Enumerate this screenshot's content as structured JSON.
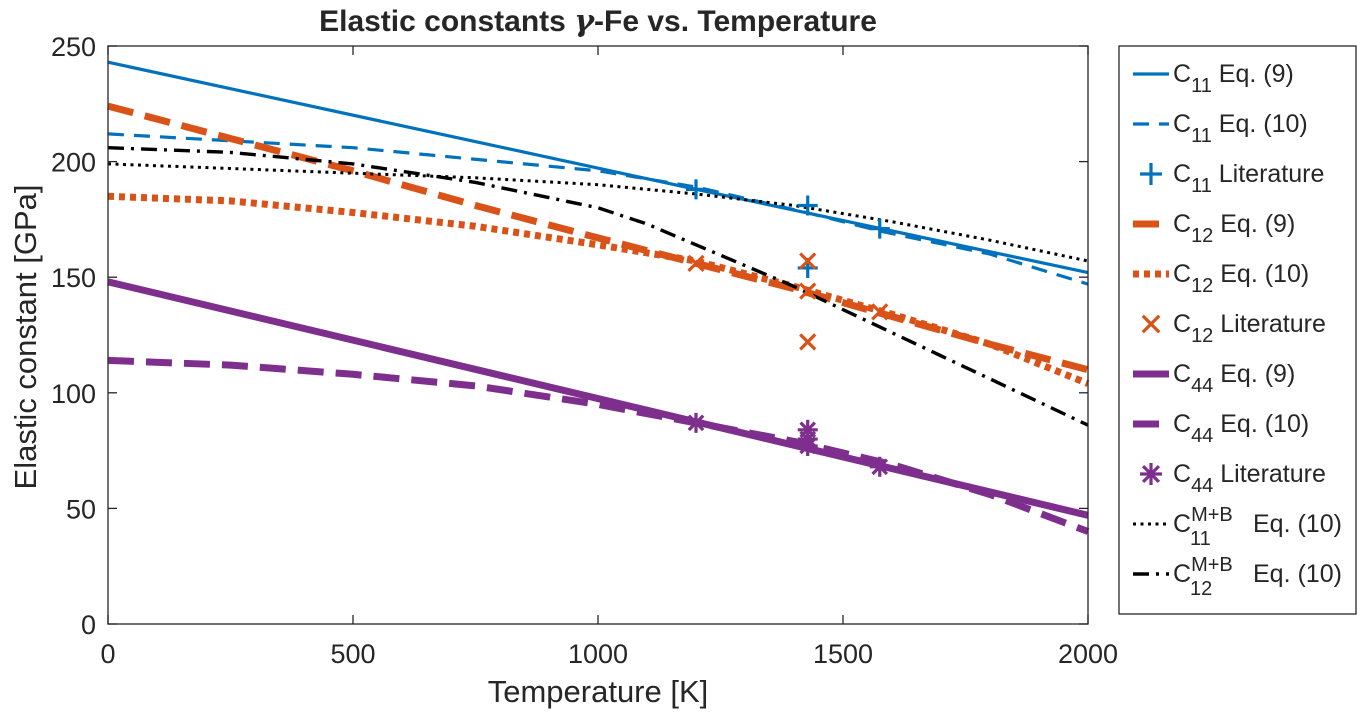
{
  "chart_data": {
    "type": "line",
    "title": {
      "pre": "Elastic constants ",
      "greek": "γ",
      "post": "-Fe vs. Temperature"
    },
    "xlabel": "Temperature [K]",
    "ylabel": "Elastic constant [GPa]",
    "xlim": [
      0,
      2000
    ],
    "ylim": [
      0,
      250
    ],
    "xticks": [
      0,
      500,
      1000,
      1500,
      2000
    ],
    "yticks": [
      0,
      50,
      100,
      150,
      200,
      250
    ],
    "grid": false,
    "legend_position": "outside-right",
    "series": [
      {
        "sym": "C",
        "sub": "11",
        "sup": "",
        "suffix": "Eq. (9)",
        "color": "#0072BD",
        "style": "solid",
        "kind": "line",
        "x": [
          0,
          1200,
          2000
        ],
        "y": [
          243,
          188,
          152
        ]
      },
      {
        "sym": "C",
        "sub": "11",
        "sup": "",
        "suffix": "Eq. (10)",
        "color": "#0072BD",
        "style": "dashed",
        "kind": "line",
        "x": [
          0,
          500,
          800,
          1000,
          1200,
          1425,
          1575,
          1800,
          2000
        ],
        "y": [
          212,
          206,
          200,
          196,
          189,
          178,
          170,
          160,
          147
        ]
      },
      {
        "sym": "C",
        "sub": "11",
        "sup": "",
        "suffix": "Literature",
        "color": "#0072BD",
        "style": "none",
        "kind": "marker",
        "marker": "plus",
        "x": [
          1200,
          1428,
          1428,
          1575
        ],
        "y": [
          188,
          181,
          154,
          171
        ]
      },
      {
        "sym": "C",
        "sub": "12",
        "sup": "",
        "suffix": "Eq. (9)",
        "color": "#D95319",
        "style": "thickdash",
        "kind": "line",
        "x": [
          0,
          250,
          500,
          750,
          1000,
          1200,
          1400,
          1600,
          1800,
          2000
        ],
        "y": [
          224,
          210,
          196,
          181,
          167,
          156,
          145,
          133,
          121,
          110
        ]
      },
      {
        "sym": "C",
        "sub": "12",
        "sup": "",
        "suffix": "Eq. (10)",
        "color": "#D95319",
        "style": "dotted",
        "kind": "line",
        "x": [
          0,
          250,
          500,
          750,
          1000,
          1200,
          1400,
          1600,
          1800,
          2000
        ],
        "y": [
          185,
          183,
          178,
          172,
          164,
          157,
          146,
          134,
          121,
          104
        ]
      },
      {
        "sym": "C",
        "sub": "12",
        "sup": "",
        "suffix": "Literature",
        "color": "#D95319",
        "style": "none",
        "kind": "marker",
        "marker": "x",
        "x": [
          1200,
          1428,
          1428,
          1428,
          1575
        ],
        "y": [
          156,
          157,
          144,
          122,
          135
        ]
      },
      {
        "sym": "C",
        "sub": "44",
        "sup": "",
        "suffix": "Eq. (9)",
        "color": "#7E2F8E",
        "style": "thicksolid",
        "kind": "line",
        "x": [
          0,
          2000
        ],
        "y": [
          148,
          47
        ]
      },
      {
        "sym": "C",
        "sub": "44",
        "sup": "",
        "suffix": "Eq. (10)",
        "color": "#7E2F8E",
        "style": "thickdash",
        "kind": "line",
        "x": [
          0,
          250,
          500,
          750,
          1000,
          1200,
          1400,
          1600,
          1800,
          2000
        ],
        "y": [
          114,
          112,
          108,
          103,
          95,
          87,
          79,
          69,
          56,
          40
        ]
      },
      {
        "sym": "C",
        "sub": "44",
        "sup": "",
        "suffix": "Literature",
        "color": "#7E2F8E",
        "style": "none",
        "kind": "marker",
        "marker": "asterisk",
        "x": [
          1200,
          1428,
          1428,
          1428,
          1575
        ],
        "y": [
          87,
          84,
          80,
          77,
          68
        ]
      },
      {
        "sym": "C",
        "sub": "11",
        "sup": "M+B",
        "suffix": "Eq. (10)",
        "color": "#000000",
        "style": "dotted",
        "kind": "line",
        "x": [
          0,
          250,
          500,
          750,
          1000,
          1200,
          1400,
          1600,
          1800,
          2000
        ],
        "y": [
          199,
          197,
          195,
          193,
          190,
          186,
          181,
          174,
          166,
          157
        ]
      },
      {
        "sym": "C",
        "sub": "12",
        "sup": "M+B",
        "suffix": "Eq. (10)",
        "color": "#000000",
        "style": "dashdot",
        "kind": "line",
        "x": [
          0,
          250,
          500,
          750,
          1000,
          1100,
          1200,
          1300,
          1400,
          1500,
          1600,
          1700,
          1800,
          1900,
          2000
        ],
        "y": [
          206,
          204,
          199,
          191,
          180,
          173,
          164,
          155,
          146,
          136,
          126,
          116,
          106,
          96,
          86
        ]
      }
    ]
  }
}
